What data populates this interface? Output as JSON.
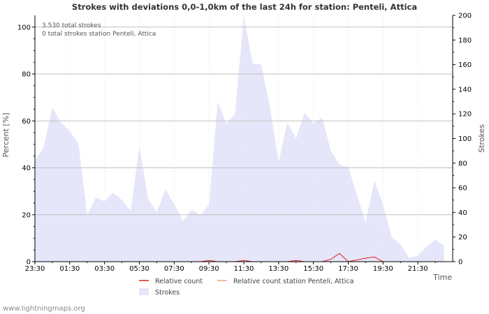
{
  "chart_data": {
    "type": "area",
    "title": "Strokes with deviations 0,0-1,0km of the last 24h for station: Penteli, Attica",
    "ylabel_left": "Percent   [%]",
    "ylabel_right": "Strokes",
    "xlabel": "Time",
    "ylim_left": [
      0,
      105
    ],
    "ylim_right": [
      0,
      200
    ],
    "yticks_left": [
      0,
      20,
      40,
      60,
      80,
      100
    ],
    "yticks_right": [
      0,
      20,
      40,
      60,
      80,
      100,
      120,
      140,
      160,
      180,
      200
    ],
    "x_ticks": [
      "23:30",
      "01:30",
      "03:30",
      "05:30",
      "07:30",
      "09:30",
      "11:30",
      "13:30",
      "15:30",
      "17:30",
      "19:30",
      "21:30"
    ],
    "annotations": [
      "3.530 total strokes",
      "0 total strokes station Penteli, Attica"
    ],
    "grid": true,
    "legend": [
      {
        "name": "Relative count",
        "color": "#dd2222",
        "kind": "line"
      },
      {
        "name": "Relative count station Penteli, Attica",
        "color": "#f0a080",
        "kind": "line"
      },
      {
        "name": "Strokes",
        "color": "#e6e6fa",
        "kind": "area"
      }
    ],
    "series": [
      {
        "name": "Strokes",
        "axis": "right",
        "x_hours": [
          0,
          0.5,
          1,
          1.5,
          2,
          2.5,
          3,
          3.5,
          4,
          4.5,
          5,
          5.5,
          6,
          6.5,
          7,
          7.5,
          8,
          8.5,
          9,
          9.5,
          10,
          10.5,
          11,
          11.5,
          12,
          12.5,
          13,
          13.5,
          14,
          14.5,
          15,
          15.5,
          16,
          16.5,
          17,
          17.5,
          18,
          18.5,
          19,
          19.5,
          20,
          20.5,
          21,
          21.5,
          22,
          22.5,
          23,
          23.5
        ],
        "values": [
          82,
          93,
          125,
          113,
          106,
          96,
          38,
          52,
          49,
          56,
          50,
          41,
          94,
          51,
          40,
          59,
          47,
          33,
          42,
          38,
          46,
          130,
          112,
          120,
          200,
          161,
          160,
          126,
          81,
          113,
          100,
          121,
          112,
          117,
          90,
          79,
          77,
          54,
          32,
          66,
          46,
          20,
          14,
          3,
          5,
          12,
          18,
          13
        ]
      },
      {
        "name": "Relative count",
        "axis": "left",
        "x_hours": [
          9.5,
          10.0,
          10.5,
          11.5,
          12.0,
          12.5,
          14.5,
          15.0,
          15.5,
          16.5,
          17.0,
          17.5,
          18.0,
          19.0,
          19.5,
          20.0,
          21.0
        ],
        "values": [
          0,
          0.5,
          0,
          0,
          0.5,
          0,
          0,
          0.5,
          0,
          0,
          1.0,
          3.5,
          0,
          1.5,
          2.0,
          0,
          0
        ]
      },
      {
        "name": "Relative count station Penteli, Attica",
        "axis": "left",
        "x_hours": [],
        "values": []
      }
    ]
  },
  "footer": {
    "watermark": "www.lightningmaps.org"
  }
}
